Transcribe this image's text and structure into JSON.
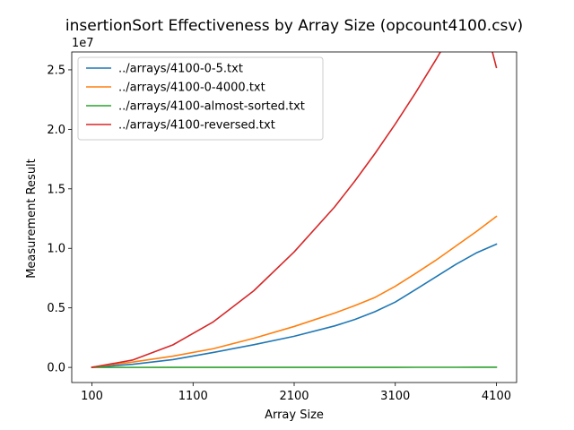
{
  "chart_data": {
    "type": "line",
    "title": "insertionSort Effectiveness by Array Size (opcount4100.csv)",
    "xlabel": "Array Size",
    "ylabel": "Measurement Result",
    "y_offset_text": "1e7",
    "xlim": [
      -100,
      4300
    ],
    "ylim": [
      -0.127,
      2.65
    ],
    "x_ticks": [
      100,
      1100,
      2100,
      3100,
      4100
    ],
    "x_tick_labels": [
      "100",
      "1100",
      "2100",
      "3100",
      "4100"
    ],
    "y_ticks": [
      0.0,
      0.5,
      1.0,
      1.5,
      2.0,
      2.5
    ],
    "y_tick_labels": [
      "0.0",
      "0.5",
      "1.0",
      "1.5",
      "2.0",
      "2.5"
    ],
    "legend_position": "top-left",
    "grid": false,
    "x": [
      100,
      500,
      900,
      1300,
      1700,
      2100,
      2500,
      2700,
      2900,
      3100,
      3300,
      3500,
      3700,
      3900,
      4100
    ],
    "series": [
      {
        "name": "../arrays/4100-0-5.txt",
        "color": "#1f77b4",
        "values": [
          0.0005,
          0.026,
          0.0653,
          0.1256,
          0.1906,
          0.2615,
          0.3485,
          0.4025,
          0.4685,
          0.5488,
          0.6532,
          0.7593,
          0.8659,
          0.9613,
          1.035
        ]
      },
      {
        "name": "../arrays/4100-0-4000.txt",
        "color": "#ff7f0e",
        "values": [
          0.0025,
          0.0447,
          0.0943,
          0.1571,
          0.2447,
          0.3439,
          0.4563,
          0.5192,
          0.5883,
          0.6812,
          0.7891,
          0.8996,
          1.0199,
          1.1402,
          1.268
        ]
      },
      {
        "name": "../arrays/4100-almost-sorted.txt",
        "color": "#2ca02c",
        "values": [
          0.0,
          0.0,
          0.0001,
          0.0002,
          0.0003,
          0.0004,
          0.0005,
          0.0006,
          0.0007,
          0.0008,
          0.0009,
          0.001,
          0.001,
          0.0011,
          0.0012
        ]
      },
      {
        "name": "../arrays/4100-reversed.txt",
        "color": "#d62728",
        "values": [
          0.0005,
          0.0616,
          0.1891,
          0.3826,
          0.6434,
          0.9703,
          1.3479,
          1.5655,
          1.7977,
          2.0446,
          2.3061,
          2.5824,
          2.8733,
          3.1789,
          2.52
        ]
      }
    ]
  }
}
